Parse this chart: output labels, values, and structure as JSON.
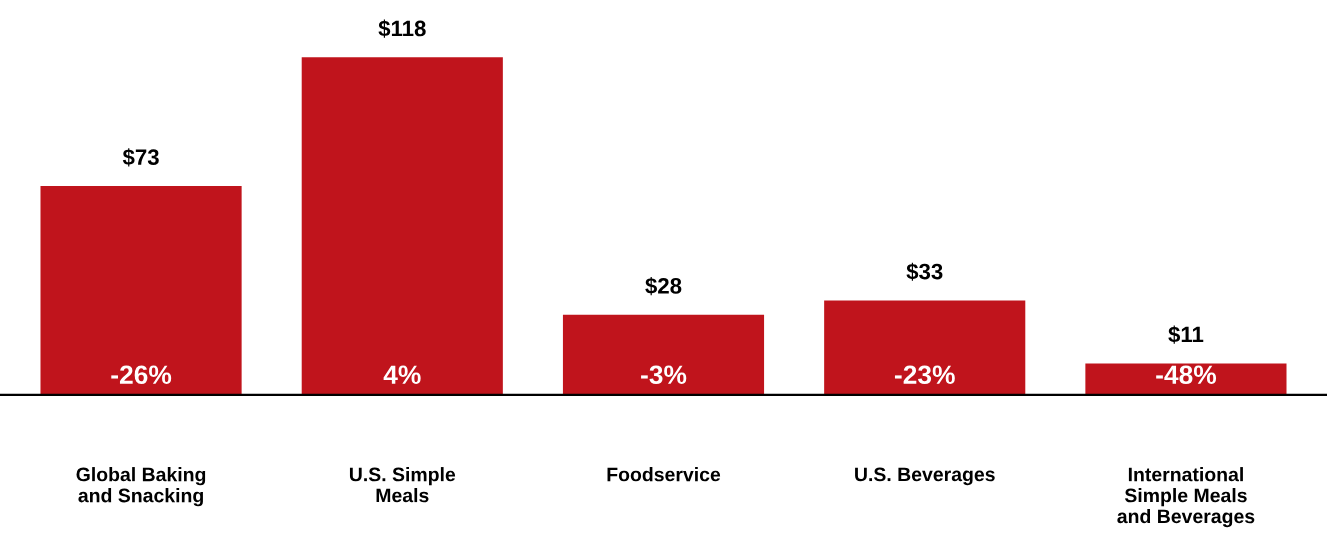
{
  "chart_data": {
    "type": "bar",
    "categories": [
      "Global Baking\nand Snacking",
      "U.S. Simple\nMeals",
      "Foodservice",
      "U.S. Beverages",
      "International\nSimple Meals\nand Beverages"
    ],
    "values": [
      73,
      118,
      28,
      33,
      11
    ],
    "value_labels": [
      "$73",
      "$118",
      "$28",
      "$33",
      "$11"
    ],
    "color": "#c0141c",
    "relative": false,
    "annotations": [
      "-26%",
      "4%",
      "-3%",
      "-23%",
      "-48%"
    ],
    "grid": false,
    "legend": false
  }
}
